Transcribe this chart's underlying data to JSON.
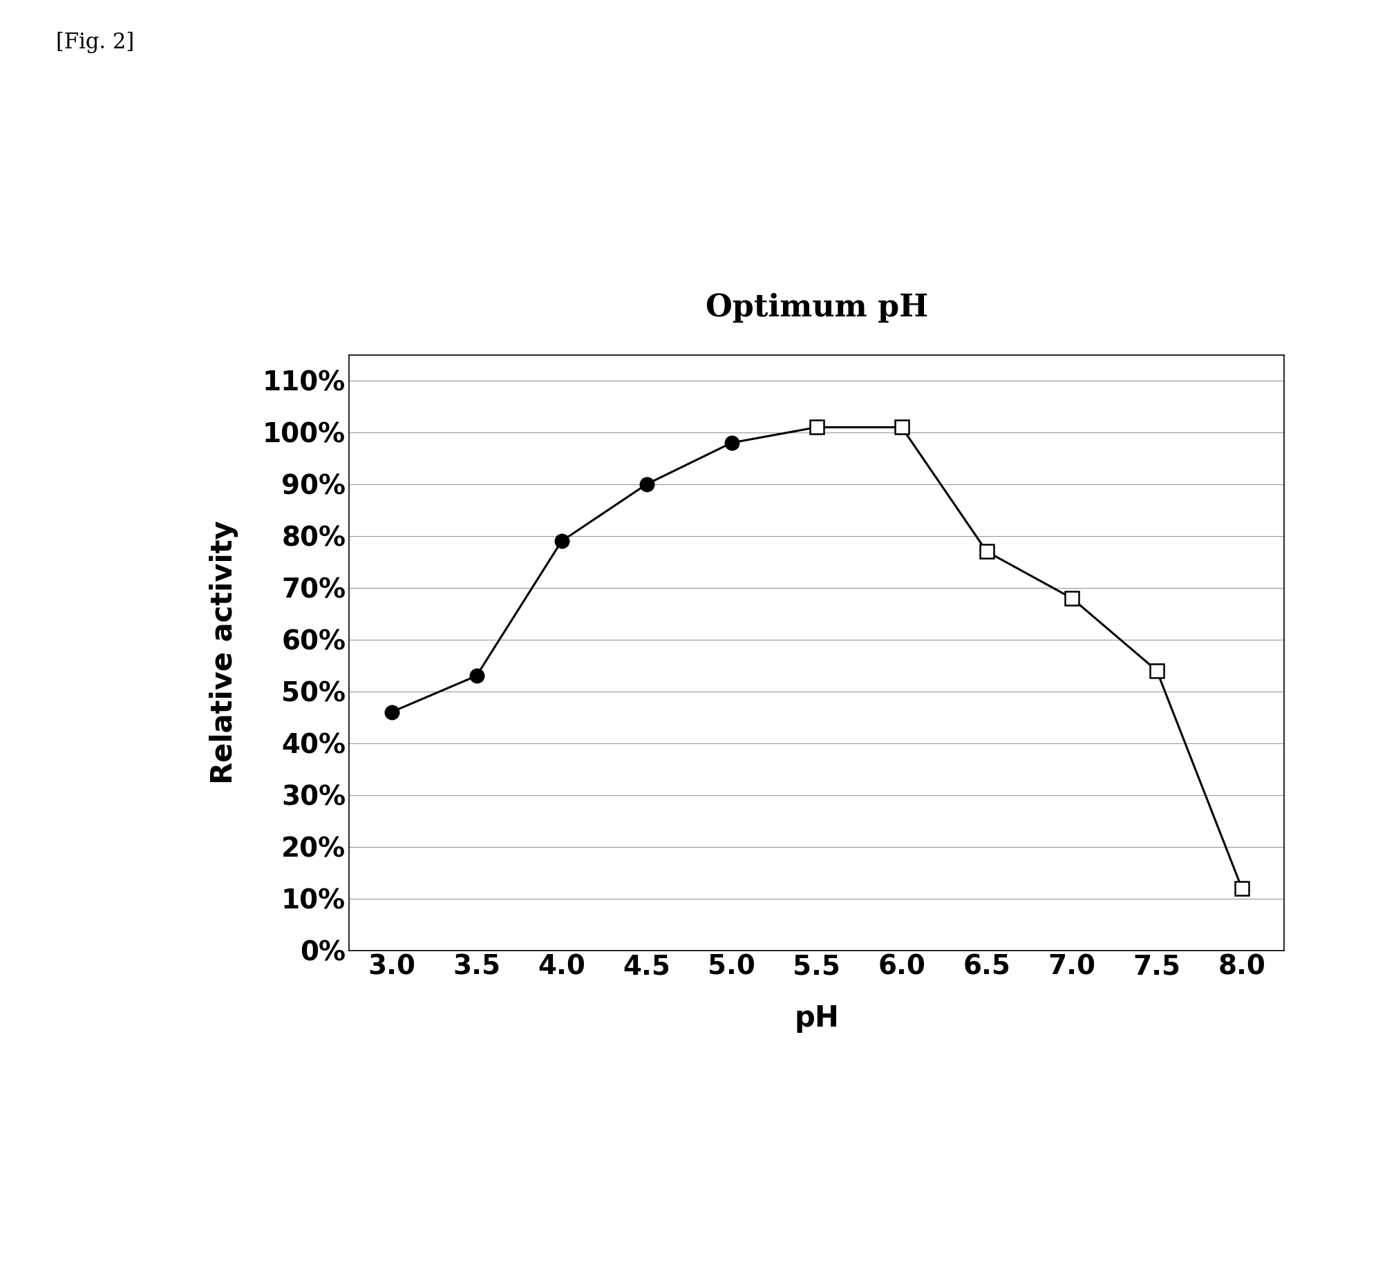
{
  "title": "Optimum pH",
  "xlabel": "pH",
  "ylabel": "Relative activity",
  "fig_label": "[Fig. 2]",
  "series1": {
    "x": [
      3.0,
      3.5,
      4.0,
      4.5,
      5.0,
      5.5
    ],
    "y": [
      0.46,
      0.53,
      0.79,
      0.9,
      0.98,
      1.01
    ],
    "marker": "o",
    "markersize": 14,
    "markerfacecolor": "#000000",
    "markeredgecolor": "#000000",
    "linecolor": "#000000",
    "linewidth": 2.2
  },
  "series2": {
    "x": [
      5.5,
      6.0,
      6.5,
      7.0,
      7.5,
      8.0
    ],
    "y": [
      1.01,
      1.01,
      0.77,
      0.68,
      0.54,
      0.12
    ],
    "marker": "s",
    "markersize": 14,
    "markerfacecolor": "#ffffff",
    "markeredgecolor": "#000000",
    "linecolor": "#000000",
    "linewidth": 2.2
  },
  "ylim": [
    0.0,
    1.15
  ],
  "xlim": [
    2.75,
    8.25
  ],
  "yticks": [
    0.0,
    0.1,
    0.2,
    0.3,
    0.4,
    0.5,
    0.6,
    0.7,
    0.8,
    0.9,
    1.0,
    1.1
  ],
  "xticks": [
    3.0,
    3.5,
    4.0,
    4.5,
    5.0,
    5.5,
    6.0,
    6.5,
    7.0,
    7.5,
    8.0
  ],
  "background_color": "#ffffff",
  "title_fontsize": 32,
  "axis_label_fontsize": 30,
  "tick_fontsize": 28,
  "fig_label_fontsize": 22,
  "grid_color": "#999999",
  "grid_linewidth": 0.8
}
